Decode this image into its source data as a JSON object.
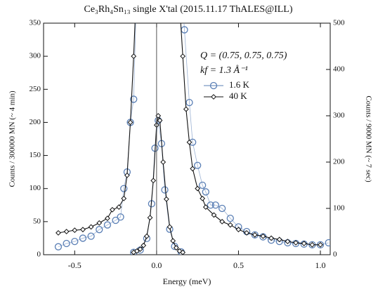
{
  "chart_data": {
    "type": "line",
    "title": "Ce₃Rh₄Sn₁₃ single X'tal (2015.11.17 ThALES@ILL)",
    "x_label": "Energy (meV)",
    "y_label": "Counts / 300000 MN (~ 4 min)",
    "y2_label": "Counts / 9000 MN (~ 7 sec)",
    "annotations": [
      "Q = (0.75, 0.75, 0.75)",
      "kf = 1.3 Å⁻¹"
    ],
    "xlim": [
      -0.69,
      1.06
    ],
    "ylim": [
      0,
      350
    ],
    "y2lim": [
      0,
      500
    ],
    "xticks": [
      -0.5,
      {
        "value": 0,
        "label": "0.0"
      },
      0.5,
      {
        "value": 1,
        "label": "1.0"
      }
    ],
    "yticks": [
      0,
      50,
      100,
      150,
      200,
      250,
      300,
      350
    ],
    "y2ticks": [
      0,
      100,
      200,
      300,
      400,
      500
    ],
    "series": [
      {
        "name": "1.6 K",
        "color": "#5a7fb5",
        "marker": "circle",
        "x": [
          -0.6,
          -0.55,
          -0.5,
          -0.45,
          -0.4,
          -0.35,
          -0.3,
          -0.25,
          -0.22,
          -0.2,
          -0.18,
          -0.16,
          -0.14,
          -0.12,
          null,
          0.15,
          0.17,
          0.2,
          0.22,
          0.25,
          0.28,
          0.3,
          0.33,
          0.36,
          0.4,
          0.45,
          0.5,
          0.55,
          0.6,
          0.65,
          0.7,
          0.75,
          0.8,
          0.85,
          0.9,
          0.95,
          1.0,
          1.05
        ],
        "values": [
          12,
          17,
          20,
          25,
          28,
          38,
          45,
          52,
          57,
          100,
          125,
          200,
          235,
          420,
          null,
          420,
          340,
          230,
          170,
          135,
          105,
          95,
          75,
          75,
          70,
          55,
          42,
          35,
          30,
          27,
          22,
          20,
          18,
          17,
          16,
          15,
          15,
          18
        ]
      },
      {
        "name": "40 K",
        "color": "#111111",
        "marker": "diamond",
        "x": [
          -0.6,
          -0.55,
          -0.5,
          -0.45,
          -0.4,
          -0.35,
          -0.3,
          -0.27,
          -0.23,
          -0.2,
          -0.18,
          -0.16,
          -0.14,
          -0.12,
          null,
          0.13,
          0.16,
          0.18,
          0.2,
          0.22,
          0.25,
          0.28,
          0.3,
          0.35,
          0.4,
          0.45,
          0.5,
          0.55,
          0.6,
          0.65,
          0.7,
          0.75,
          0.8,
          0.85,
          0.9,
          0.95,
          1.0
        ],
        "values": [
          33,
          35,
          37,
          38,
          42,
          48,
          55,
          68,
          72,
          85,
          120,
          200,
          300,
          420,
          null,
          420,
          300,
          220,
          170,
          130,
          100,
          85,
          72,
          60,
          50,
          45,
          38,
          33,
          30,
          28,
          25,
          23,
          20,
          18,
          17,
          15,
          15
        ]
      },
      {
        "color": "#5a7fb5",
        "marker": "circle",
        "axis": "y2",
        "x": [
          -0.14,
          -0.1,
          -0.06,
          -0.03,
          -0.01,
          0.01,
          0.03,
          0.05,
          0.08,
          0.11,
          0.15
        ],
        "values": [
          5,
          10,
          35,
          110,
          230,
          290,
          240,
          140,
          55,
          18,
          6
        ]
      },
      {
        "color": "#111111",
        "marker": "diamond",
        "axis": "y2",
        "x": [
          -0.14,
          -0.12,
          -0.1,
          -0.08,
          -0.06,
          -0.04,
          -0.02,
          0,
          0.01,
          0.02,
          0.04,
          0.06,
          0.08,
          0.1,
          0.12,
          0.14,
          0.16
        ],
        "values": [
          5,
          8,
          12,
          20,
          40,
          80,
          160,
          280,
          300,
          290,
          200,
          120,
          60,
          30,
          15,
          8,
          5
        ]
      }
    ]
  }
}
